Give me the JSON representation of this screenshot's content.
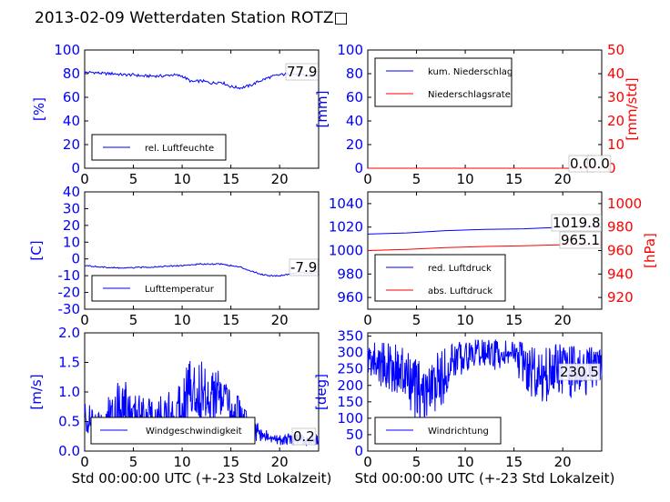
{
  "title": "2013-02-09 Wetterdaten Station ROTZ□",
  "x_tick_labels": [
    "0",
    "5",
    "10",
    "15",
    "20"
  ],
  "chart_data": [
    {
      "id": "humidity",
      "type": "line",
      "ylabel": "[%]",
      "xlim": [
        0,
        24
      ],
      "ylim": [
        0,
        100
      ],
      "yticks": [
        0,
        20,
        40,
        60,
        80,
        100
      ],
      "legend": "bottom-left",
      "annotations": [
        "77.9"
      ],
      "series": [
        {
          "name": "rel. Luftfeuchte",
          "color": "#0000ff",
          "x": [
            0,
            1,
            2,
            3,
            4,
            5,
            6,
            7,
            8,
            9,
            10,
            11,
            12,
            13,
            14,
            15,
            16,
            17,
            18,
            19,
            20,
            21,
            22,
            23,
            24
          ],
          "y": [
            81,
            81,
            80,
            80,
            79,
            79,
            78,
            78,
            78,
            79,
            78,
            73,
            74,
            72,
            73,
            69,
            68,
            70,
            74,
            77,
            79,
            80,
            79,
            78,
            79
          ]
        }
      ]
    },
    {
      "id": "precip",
      "type": "line",
      "ylabel": "[mm]",
      "ylabel2": "[mm/std]",
      "xlim": [
        0,
        24
      ],
      "ylim": [
        0,
        100
      ],
      "yticks": [
        0,
        20,
        40,
        60,
        80,
        100
      ],
      "ylim2": [
        0,
        50
      ],
      "yticks2": [
        0,
        10,
        20,
        30,
        40,
        50
      ],
      "legend": "top-left",
      "annotations": [
        "0.0",
        "0.0"
      ],
      "series": [
        {
          "name": "kum. Niederschlag",
          "color": "#0000ff",
          "x": [
            0,
            24
          ],
          "y": [
            0,
            0
          ]
        },
        {
          "name": "Niederschlagsrate",
          "color": "#ff0000",
          "x": [
            0,
            24
          ],
          "y": [
            0,
            0
          ]
        }
      ]
    },
    {
      "id": "temperature",
      "type": "line",
      "ylabel": "[C]",
      "xlim": [
        0,
        24
      ],
      "ylim": [
        -30,
        40
      ],
      "yticks": [
        -30,
        -20,
        -10,
        0,
        10,
        20,
        30,
        40
      ],
      "legend": "bottom-left",
      "annotations": [
        "-7.9"
      ],
      "series": [
        {
          "name": "Lufttemperatur",
          "color": "#0000ff",
          "x": [
            0,
            2,
            4,
            6,
            8,
            10,
            12,
            13,
            14,
            15,
            16,
            17,
            18,
            19,
            20,
            21,
            22,
            23,
            24
          ],
          "y": [
            -4,
            -5,
            -5.5,
            -5,
            -4.5,
            -4,
            -3,
            -3,
            -3,
            -4,
            -5,
            -7,
            -9,
            -10,
            -10,
            -9,
            -8,
            -8.5,
            -8
          ]
        }
      ]
    },
    {
      "id": "pressure",
      "type": "line",
      "ylabel2": "[hPa]",
      "xlim": [
        0,
        24
      ],
      "ylim": [
        950,
        1050
      ],
      "yticks": [
        960,
        980,
        1000,
        1020,
        1040
      ],
      "ylim2": [
        910,
        1010
      ],
      "yticks2": [
        920,
        940,
        960,
        980,
        1000
      ],
      "legend": "bottom-left",
      "annotations": [
        "1019.8",
        "965.1"
      ],
      "series": [
        {
          "name": "red. Luftdruck",
          "color": "#0000ff",
          "x": [
            0,
            4,
            8,
            12,
            16,
            20,
            22,
            24
          ],
          "y": [
            1014,
            1015,
            1017,
            1018,
            1018.5,
            1020,
            1020.5,
            1020
          ],
          "axis": "left"
        },
        {
          "name": "abs. Luftdruck",
          "color": "#ff0000",
          "x": [
            0,
            4,
            8,
            12,
            16,
            20,
            22,
            24
          ],
          "y": [
            960,
            961,
            962.5,
            963.5,
            964,
            965,
            965,
            965
          ],
          "axis": "right"
        }
      ]
    },
    {
      "id": "windspeed",
      "type": "line",
      "ylabel": "[m/s]",
      "xlabel": "Std 00:00:00 UTC (+-23 Std Lokalzeit)",
      "xlim": [
        0,
        24
      ],
      "ylim": [
        0.0,
        2.0
      ],
      "yticks": [
        0.0,
        0.5,
        1.0,
        1.5,
        2.0
      ],
      "legend": "bottom-center",
      "annotations": [
        "0.2"
      ],
      "series": [
        {
          "name": "Windgeschwindigkeit",
          "color": "#0000ff",
          "x": [
            0,
            1,
            2,
            3,
            4,
            5,
            6,
            7,
            8,
            9,
            10,
            11,
            12,
            13,
            14,
            15,
            16,
            17,
            18,
            19,
            20,
            21,
            22,
            23,
            24
          ],
          "y": [
            0.6,
            0.4,
            0.5,
            0.7,
            0.8,
            0.6,
            0.7,
            0.5,
            0.7,
            0.6,
            0.9,
            1.1,
            1.0,
            1.0,
            0.9,
            0.7,
            0.6,
            0.4,
            0.3,
            0.2,
            0.2,
            0.2,
            0.2,
            0.2,
            0.2
          ],
          "amplitude": [
            0.3,
            0.3,
            0.3,
            0.5,
            0.5,
            0.3,
            0.4,
            0.3,
            0.3,
            0.4,
            0.5,
            0.6,
            0.6,
            0.5,
            0.4,
            0.4,
            0.3,
            0.2,
            0.15,
            0.1,
            0.1,
            0.1,
            0.1,
            0.1,
            0.1
          ]
        }
      ]
    },
    {
      "id": "winddir",
      "type": "line",
      "ylabel": "[deg]",
      "xlabel": "Std 00:00:00 UTC (+-23 Std Lokalzeit)",
      "xlim": [
        0,
        24
      ],
      "ylim": [
        0,
        360
      ],
      "yticks": [
        0,
        50,
        100,
        150,
        200,
        250,
        300,
        350
      ],
      "legend": "bottom-left",
      "annotations": [
        "230.5"
      ],
      "series": [
        {
          "name": "Windrichtung",
          "color": "#0000ff",
          "x": [
            0,
            1,
            2,
            3,
            4,
            5,
            6,
            7,
            8,
            9,
            10,
            11,
            12,
            13,
            14,
            15,
            16,
            17,
            18,
            19,
            20,
            21,
            22,
            23,
            24
          ],
          "y": [
            280,
            270,
            260,
            250,
            220,
            180,
            170,
            200,
            240,
            280,
            290,
            300,
            300,
            290,
            300,
            290,
            260,
            240,
            230,
            250,
            250,
            240,
            240,
            250,
            260
          ],
          "amplitude": [
            60,
            70,
            70,
            80,
            90,
            100,
            100,
            100,
            80,
            60,
            50,
            40,
            40,
            50,
            40,
            50,
            70,
            80,
            90,
            80,
            80,
            80,
            80,
            70,
            60
          ]
        }
      ]
    }
  ]
}
